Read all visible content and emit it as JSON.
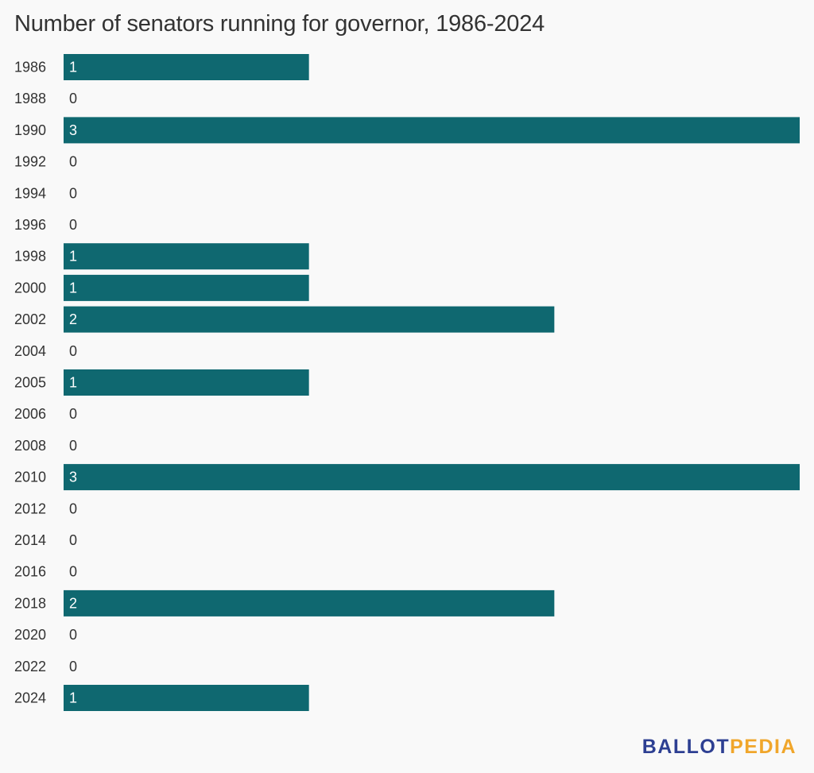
{
  "title": "Number of senators running for governor, 1986-2024",
  "logo": {
    "part1": "BALLOT",
    "part2": "PEDIA"
  },
  "colors": {
    "bar": "#0f6870",
    "bar_label": "#ffffff",
    "zero_label": "#333333",
    "tick_label": "#333333"
  },
  "chart_data": {
    "type": "bar",
    "orientation": "horizontal",
    "title": "Number of senators running for governor, 1986-2024",
    "categories": [
      "1986",
      "1988",
      "1990",
      "1992",
      "1994",
      "1996",
      "1998",
      "2000",
      "2002",
      "2004",
      "2005",
      "2006",
      "2008",
      "2010",
      "2012",
      "2014",
      "2016",
      "2018",
      "2020",
      "2022",
      "2024"
    ],
    "values": [
      1,
      0,
      3,
      0,
      0,
      0,
      1,
      1,
      2,
      0,
      1,
      0,
      0,
      3,
      0,
      0,
      0,
      2,
      0,
      0,
      1
    ],
    "xlim": [
      0,
      3
    ],
    "grid": false,
    "data_labels": true
  }
}
